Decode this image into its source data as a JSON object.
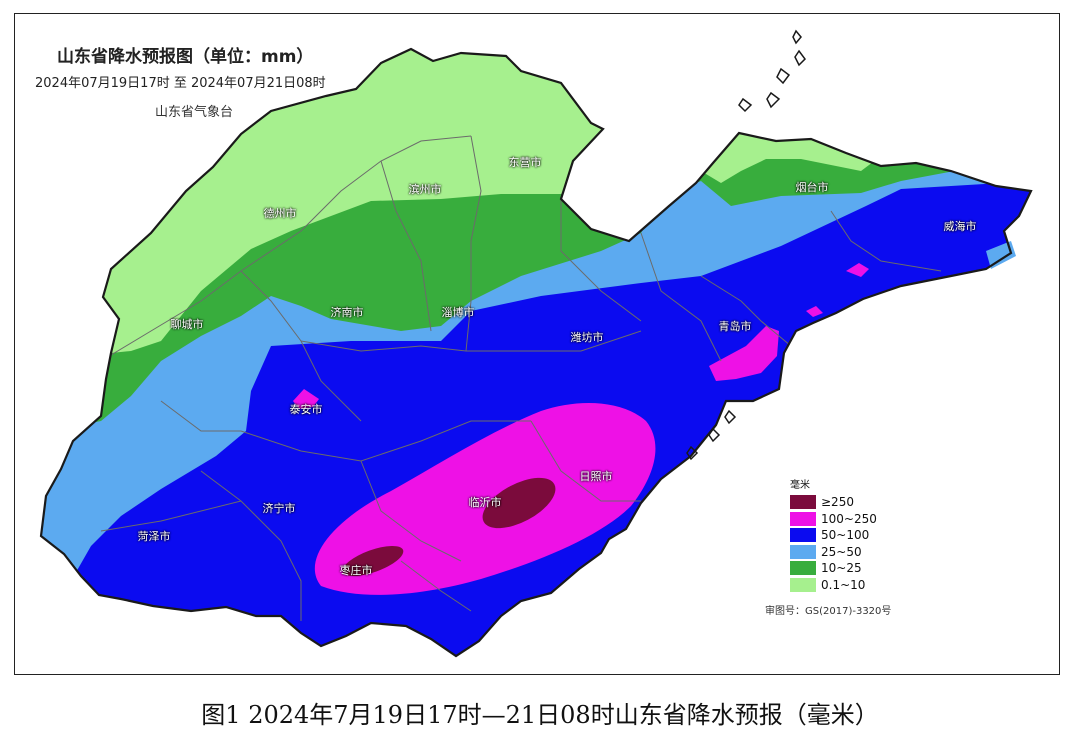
{
  "map": {
    "title": "山东省降水预报图（单位：mm）",
    "period": "2024年07月19日17时  至  2024年07月21日08时",
    "issuer": "山东省气象台",
    "approval_number": "审图号：GS(2017)-3320号",
    "cities": [
      {
        "key": "dezhou",
        "name": "德州市"
      },
      {
        "key": "binzhou",
        "name": "滨州市"
      },
      {
        "key": "dongying",
        "name": "东营市"
      },
      {
        "key": "yantai",
        "name": "烟台市"
      },
      {
        "key": "weihai",
        "name": "威海市"
      },
      {
        "key": "liaocheng",
        "name": "聊城市"
      },
      {
        "key": "jinan",
        "name": "济南市"
      },
      {
        "key": "zibo",
        "name": "淄博市"
      },
      {
        "key": "weifang",
        "name": "潍坊市"
      },
      {
        "key": "qingdao",
        "name": "青岛市"
      },
      {
        "key": "taian",
        "name": "泰安市"
      },
      {
        "key": "rizhao",
        "name": "日照市"
      },
      {
        "key": "linyi",
        "name": "临沂市"
      },
      {
        "key": "jining",
        "name": "济宁市"
      },
      {
        "key": "heze",
        "name": "菏泽市"
      },
      {
        "key": "zaozhuang",
        "name": "枣庄市"
      }
    ]
  },
  "legend": {
    "unit": "毫米",
    "items": [
      {
        "label": "≥250",
        "color": "#7b0b3c"
      },
      {
        "label": "100~250",
        "color": "#ee11e6"
      },
      {
        "label": "50~100",
        "color": "#0b0bf0"
      },
      {
        "label": "25~50",
        "color": "#5caaf0"
      },
      {
        "label": "10~25",
        "color": "#38ad3d"
      },
      {
        "label": "0.1~10",
        "color": "#a6f08e"
      }
    ]
  },
  "caption": "图1 2024年7月19日17时—21日08时山东省降水预报（毫米）"
}
